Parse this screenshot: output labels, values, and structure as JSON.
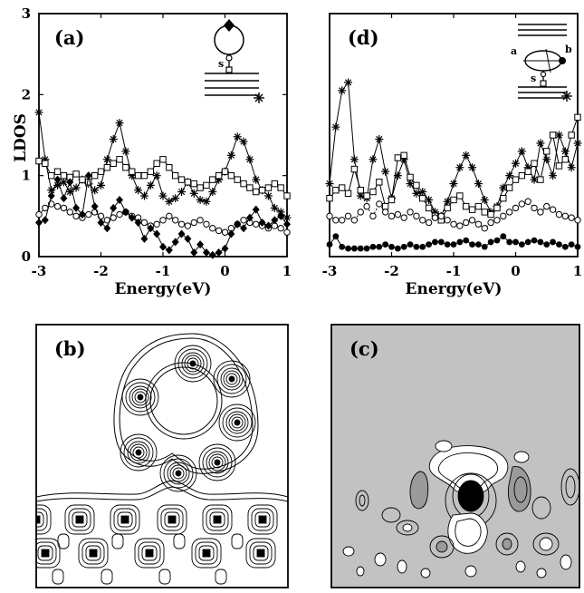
{
  "chart_data": [
    {
      "type": "line",
      "panel_label": "(a)",
      "xlabel": "Energy(eV)",
      "ylabel": "LDOS",
      "xlim": [
        -3,
        1
      ],
      "ylim": [
        0,
        3
      ],
      "xticks": [
        "-3",
        "-2",
        "-1",
        "0",
        "1"
      ],
      "yticks": [
        "0",
        "1",
        "2",
        "3"
      ],
      "inset_label": "s",
      "series": [
        {
          "marker": "asterisk",
          "style": "solid",
          "x": [
            -3.0,
            -2.9,
            -2.8,
            -2.7,
            -2.6,
            -2.5,
            -2.4,
            -2.3,
            -2.2,
            -2.1,
            -2.0,
            -1.9,
            -1.8,
            -1.7,
            -1.6,
            -1.5,
            -1.4,
            -1.3,
            -1.2,
            -1.1,
            -1.0,
            -0.9,
            -0.8,
            -0.7,
            -0.6,
            -0.5,
            -0.4,
            -0.3,
            -0.2,
            -0.1,
            0.0,
            0.1,
            0.2,
            0.3,
            0.4,
            0.5,
            0.6,
            0.7,
            0.8,
            0.9,
            1.0
          ],
          "y": [
            1.78,
            1.2,
            0.82,
            0.88,
            0.92,
            0.8,
            0.85,
            0.95,
            0.9,
            0.82,
            0.88,
            1.2,
            1.45,
            1.65,
            1.3,
            1.0,
            0.82,
            0.75,
            0.88,
            1.0,
            0.75,
            0.68,
            0.72,
            0.8,
            0.92,
            0.78,
            0.7,
            0.68,
            0.8,
            0.95,
            1.05,
            1.25,
            1.48,
            1.42,
            1.2,
            0.95,
            0.82,
            0.75,
            0.6,
            0.55,
            0.48
          ]
        },
        {
          "marker": "square",
          "style": "solid",
          "x": [
            -3.0,
            -2.9,
            -2.8,
            -2.7,
            -2.6,
            -2.5,
            -2.4,
            -2.3,
            -2.2,
            -2.1,
            -2.0,
            -1.9,
            -1.8,
            -1.7,
            -1.6,
            -1.5,
            -1.4,
            -1.3,
            -1.2,
            -1.1,
            -1.0,
            -0.9,
            -0.8,
            -0.7,
            -0.6,
            -0.5,
            -0.4,
            -0.3,
            -0.2,
            -0.1,
            0.0,
            0.1,
            0.2,
            0.3,
            0.4,
            0.5,
            0.6,
            0.7,
            0.8,
            0.9,
            1.0
          ],
          "y": [
            1.18,
            1.15,
            1.0,
            1.05,
            1.0,
            0.98,
            1.02,
            0.95,
            0.92,
            1.0,
            1.05,
            1.1,
            1.15,
            1.2,
            1.1,
            1.05,
            1.0,
            1.0,
            1.05,
            1.15,
            1.2,
            1.1,
            1.0,
            0.95,
            0.92,
            0.9,
            0.85,
            0.88,
            0.95,
            1.0,
            1.05,
            1.0,
            0.95,
            0.9,
            0.85,
            0.8,
            0.82,
            0.85,
            0.9,
            0.85,
            0.75
          ]
        },
        {
          "marker": "circle",
          "style": "dotted",
          "x": [
            -3.0,
            -2.9,
            -2.8,
            -2.7,
            -2.6,
            -2.5,
            -2.4,
            -2.3,
            -2.2,
            -2.1,
            -2.0,
            -1.9,
            -1.8,
            -1.7,
            -1.6,
            -1.5,
            -1.4,
            -1.3,
            -1.2,
            -1.1,
            -1.0,
            -0.9,
            -0.8,
            -0.7,
            -0.6,
            -0.5,
            -0.4,
            -0.3,
            -0.2,
            -0.1,
            0.0,
            0.1,
            0.2,
            0.3,
            0.4,
            0.5,
            0.6,
            0.7,
            0.8,
            0.9,
            1.0
          ],
          "y": [
            0.52,
            0.6,
            0.65,
            0.62,
            0.6,
            0.55,
            0.5,
            0.48,
            0.52,
            0.55,
            0.5,
            0.45,
            0.48,
            0.52,
            0.55,
            0.5,
            0.48,
            0.42,
            0.38,
            0.4,
            0.45,
            0.5,
            0.45,
            0.4,
            0.38,
            0.42,
            0.45,
            0.4,
            0.35,
            0.32,
            0.3,
            0.35,
            0.4,
            0.45,
            0.42,
            0.4,
            0.38,
            0.35,
            0.38,
            0.35,
            0.3
          ]
        },
        {
          "marker": "diamond",
          "style": "solid",
          "x": [
            -3.0,
            -2.9,
            -2.8,
            -2.7,
            -2.6,
            -2.5,
            -2.4,
            -2.3,
            -2.2,
            -2.1,
            -2.0,
            -1.9,
            -1.8,
            -1.7,
            -1.6,
            -1.5,
            -1.4,
            -1.3,
            -1.2,
            -1.1,
            -1.0,
            -0.9,
            -0.8,
            -0.7,
            -0.6,
            -0.5,
            -0.4,
            -0.3,
            -0.2,
            -0.1,
            0.0,
            0.1,
            0.2,
            0.3,
            0.4,
            0.5,
            0.6,
            0.7,
            0.8,
            0.9,
            1.0
          ],
          "y": [
            0.42,
            0.45,
            0.75,
            0.95,
            0.72,
            0.92,
            0.6,
            0.52,
            1.0,
            0.62,
            0.42,
            0.35,
            0.6,
            0.7,
            0.55,
            0.48,
            0.42,
            0.22,
            0.35,
            0.28,
            0.12,
            0.08,
            0.18,
            0.28,
            0.22,
            0.05,
            0.15,
            0.05,
            0.02,
            0.05,
            0.1,
            0.28,
            0.4,
            0.35,
            0.48,
            0.58,
            0.42,
            0.38,
            0.45,
            0.5,
            0.4
          ]
        }
      ]
    },
    {
      "type": "line",
      "panel_label": "(d)",
      "xlabel": "Energy(eV)",
      "ylabel": "",
      "xlim": [
        -3,
        1
      ],
      "ylim": [
        0,
        3
      ],
      "xticks": [
        "-3",
        "-2",
        "-1",
        "0",
        "1"
      ],
      "yticks": [],
      "inset_labels": [
        "a",
        "b",
        "s"
      ],
      "series": [
        {
          "marker": "asterisk",
          "style": "solid",
          "x": [
            -3.0,
            -2.9,
            -2.8,
            -2.7,
            -2.6,
            -2.5,
            -2.4,
            -2.3,
            -2.2,
            -2.1,
            -2.0,
            -1.9,
            -1.8,
            -1.7,
            -1.6,
            -1.5,
            -1.4,
            -1.3,
            -1.2,
            -1.1,
            -1.0,
            -0.9,
            -0.8,
            -0.7,
            -0.6,
            -0.5,
            -0.4,
            -0.3,
            -0.2,
            -0.1,
            0.0,
            0.1,
            0.2,
            0.3,
            0.4,
            0.5,
            0.6,
            0.7,
            0.8,
            0.9,
            1.0
          ],
          "y": [
            0.9,
            1.6,
            2.05,
            2.15,
            1.2,
            0.75,
            0.72,
            1.2,
            1.45,
            1.05,
            0.72,
            1.0,
            1.2,
            0.9,
            0.78,
            0.8,
            0.7,
            0.55,
            0.5,
            0.68,
            0.9,
            1.1,
            1.25,
            1.1,
            0.9,
            0.7,
            0.55,
            0.62,
            0.85,
            1.0,
            1.15,
            1.3,
            1.1,
            0.95,
            1.4,
            1.2,
            1.0,
            1.5,
            1.3,
            1.1,
            1.4
          ]
        },
        {
          "marker": "square",
          "style": "solid",
          "x": [
            -3.0,
            -2.9,
            -2.8,
            -2.7,
            -2.6,
            -2.5,
            -2.4,
            -2.3,
            -2.2,
            -2.1,
            -2.0,
            -1.9,
            -1.8,
            -1.7,
            -1.6,
            -1.5,
            -1.4,
            -1.3,
            -1.2,
            -1.1,
            -1.0,
            -0.9,
            -0.8,
            -0.7,
            -0.6,
            -0.5,
            -0.4,
            -0.3,
            -0.2,
            -0.1,
            0.0,
            0.1,
            0.2,
            0.3,
            0.4,
            0.5,
            0.6,
            0.7,
            0.8,
            0.9,
            1.0
          ],
          "y": [
            0.72,
            0.82,
            0.85,
            0.78,
            1.08,
            0.82,
            0.75,
            0.8,
            0.92,
            0.62,
            0.7,
            1.22,
            1.25,
            0.98,
            0.88,
            0.72,
            0.6,
            0.5,
            0.45,
            0.6,
            0.7,
            0.75,
            0.62,
            0.58,
            0.62,
            0.55,
            0.52,
            0.6,
            0.72,
            0.85,
            0.95,
            1.0,
            1.05,
            1.15,
            0.95,
            1.3,
            1.5,
            1.12,
            1.2,
            1.5,
            1.72
          ]
        },
        {
          "marker": "circle",
          "style": "dotted",
          "x": [
            -3.0,
            -2.9,
            -2.8,
            -2.7,
            -2.6,
            -2.5,
            -2.4,
            -2.3,
            -2.2,
            -2.1,
            -2.0,
            -1.9,
            -1.8,
            -1.7,
            -1.6,
            -1.5,
            -1.4,
            -1.3,
            -1.2,
            -1.1,
            -1.0,
            -0.9,
            -0.8,
            -0.7,
            -0.6,
            -0.5,
            -0.4,
            -0.3,
            -0.2,
            -0.1,
            0.0,
            0.1,
            0.2,
            0.3,
            0.4,
            0.5,
            0.6,
            0.7,
            0.8,
            0.9,
            1.0
          ],
          "y": [
            0.5,
            0.45,
            0.45,
            0.5,
            0.45,
            0.55,
            0.62,
            0.5,
            0.65,
            0.55,
            0.5,
            0.52,
            0.48,
            0.55,
            0.5,
            0.45,
            0.42,
            0.48,
            0.5,
            0.45,
            0.4,
            0.38,
            0.42,
            0.45,
            0.4,
            0.35,
            0.42,
            0.45,
            0.5,
            0.55,
            0.6,
            0.65,
            0.68,
            0.6,
            0.55,
            0.62,
            0.58,
            0.52,
            0.5,
            0.48,
            0.45
          ]
        },
        {
          "marker": "filled-circle",
          "style": "solid",
          "x": [
            -3.0,
            -2.9,
            -2.8,
            -2.7,
            -2.6,
            -2.5,
            -2.4,
            -2.3,
            -2.2,
            -2.1,
            -2.0,
            -1.9,
            -1.8,
            -1.7,
            -1.6,
            -1.5,
            -1.4,
            -1.3,
            -1.2,
            -1.1,
            -1.0,
            -0.9,
            -0.8,
            -0.7,
            -0.6,
            -0.5,
            -0.4,
            -0.3,
            -0.2,
            -0.1,
            0.0,
            0.1,
            0.2,
            0.3,
            0.4,
            0.5,
            0.6,
            0.7,
            0.8,
            0.9,
            1.0
          ],
          "y": [
            0.15,
            0.25,
            0.12,
            0.1,
            0.1,
            0.1,
            0.1,
            0.12,
            0.12,
            0.15,
            0.12,
            0.1,
            0.12,
            0.15,
            0.12,
            0.12,
            0.15,
            0.18,
            0.18,
            0.15,
            0.15,
            0.18,
            0.2,
            0.15,
            0.15,
            0.12,
            0.18,
            0.2,
            0.25,
            0.18,
            0.18,
            0.15,
            0.18,
            0.2,
            0.18,
            0.15,
            0.18,
            0.15,
            0.12,
            0.15,
            0.12
          ]
        }
      ]
    },
    {
      "type": "heatmap",
      "panel_label": "(b)",
      "kind": "contour map",
      "background": "#ffffff"
    },
    {
      "type": "heatmap",
      "panel_label": "(c)",
      "kind": "contour map",
      "background": "#c2c2c2"
    }
  ]
}
